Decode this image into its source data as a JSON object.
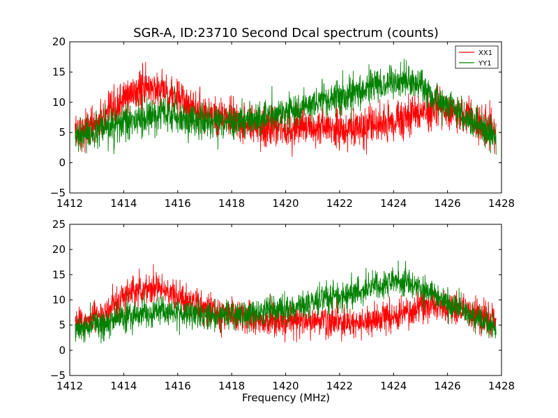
{
  "figure": {
    "title": "SGR-A, ID:23710 Second Dcal spectrum (counts)",
    "xlabel": "Frequency (MHz)"
  },
  "colors": {
    "XX1": "#ff0000",
    "YY1": "#008000"
  },
  "chart_data": [
    {
      "type": "line",
      "title": "SGR-A, ID:23710 Second Dcal spectrum (counts)",
      "xlabel": "",
      "ylabel": "",
      "xlim": [
        1412,
        1428
      ],
      "ylim": [
        -5,
        20
      ],
      "xticks": [
        "1412",
        "1414",
        "1416",
        "1418",
        "1420",
        "1422",
        "1424",
        "1426",
        "1428"
      ],
      "yticks": [
        "−5",
        "0",
        "5",
        "10",
        "15",
        "20"
      ],
      "grid": false,
      "legend": "top-right",
      "x": [
        1412.2,
        1412.5,
        1413.0,
        1413.5,
        1414.0,
        1414.5,
        1415.0,
        1415.5,
        1416.0,
        1416.5,
        1417.0,
        1417.5,
        1418.0,
        1418.5,
        1419.0,
        1419.5,
        1420.0,
        1420.5,
        1421.0,
        1421.5,
        1422.0,
        1422.5,
        1423.0,
        1423.5,
        1424.0,
        1424.5,
        1425.0,
        1425.5,
        1426.0,
        1426.5,
        1427.0,
        1427.5,
        1427.8
      ],
      "series": [
        {
          "name": "XX1",
          "color": "#ff0000",
          "noise": 1.6,
          "values": [
            5.0,
            5.5,
            6.5,
            8.0,
            10.5,
            12.0,
            12.5,
            12.0,
            10.5,
            9.5,
            8.5,
            7.5,
            7.0,
            6.5,
            6.0,
            6.0,
            5.8,
            5.8,
            5.8,
            5.6,
            5.5,
            5.5,
            5.8,
            6.2,
            6.8,
            7.5,
            8.2,
            9.0,
            8.5,
            8.0,
            7.0,
            6.0,
            5.5
          ]
        },
        {
          "name": "YY1",
          "color": "#008000",
          "noise": 1.4,
          "values": [
            4.0,
            4.5,
            5.0,
            5.8,
            6.5,
            7.0,
            7.5,
            7.8,
            7.5,
            7.0,
            6.8,
            6.8,
            6.8,
            7.0,
            7.3,
            7.8,
            8.3,
            9.0,
            9.8,
            10.3,
            10.8,
            11.5,
            12.2,
            12.8,
            13.5,
            13.5,
            12.5,
            11.0,
            9.5,
            8.0,
            6.5,
            5.0,
            4.5
          ]
        }
      ]
    },
    {
      "type": "line",
      "title": "",
      "xlabel": "Frequency (MHz)",
      "ylabel": "",
      "xlim": [
        1412,
        1428
      ],
      "ylim": [
        -5,
        25
      ],
      "xticks": [
        "1412",
        "1414",
        "1416",
        "1418",
        "1420",
        "1422",
        "1424",
        "1426",
        "1428"
      ],
      "yticks": [
        "−5",
        "0",
        "5",
        "10",
        "15",
        "20",
        "25"
      ],
      "grid": false,
      "legend": "none",
      "x": [
        1412.2,
        1412.5,
        1413.0,
        1413.5,
        1414.0,
        1414.5,
        1415.0,
        1415.5,
        1416.0,
        1416.5,
        1417.0,
        1417.5,
        1418.0,
        1418.5,
        1419.0,
        1419.5,
        1420.0,
        1420.5,
        1421.0,
        1421.5,
        1422.0,
        1422.5,
        1423.0,
        1423.5,
        1424.0,
        1424.5,
        1425.0,
        1425.5,
        1426.0,
        1426.5,
        1427.0,
        1427.5,
        1427.8
      ],
      "series": [
        {
          "name": "XX1",
          "color": "#ff0000",
          "noise": 1.6,
          "values": [
            5.0,
            5.5,
            6.5,
            8.0,
            10.5,
            12.0,
            12.5,
            12.0,
            10.5,
            9.5,
            8.5,
            7.5,
            7.0,
            6.5,
            6.0,
            6.0,
            5.8,
            5.8,
            5.8,
            5.6,
            5.5,
            5.5,
            5.8,
            6.2,
            6.8,
            7.5,
            8.2,
            9.0,
            8.5,
            8.0,
            7.0,
            6.0,
            5.5
          ]
        },
        {
          "name": "YY1",
          "color": "#008000",
          "noise": 1.4,
          "values": [
            4.0,
            4.5,
            5.0,
            5.8,
            6.5,
            7.0,
            7.5,
            7.8,
            7.5,
            7.0,
            6.8,
            6.8,
            6.8,
            7.0,
            7.3,
            7.8,
            8.3,
            9.0,
            9.8,
            10.3,
            10.8,
            11.5,
            12.2,
            12.8,
            13.5,
            13.5,
            12.5,
            11.0,
            9.5,
            8.0,
            6.5,
            5.0,
            4.5
          ]
        }
      ]
    }
  ]
}
